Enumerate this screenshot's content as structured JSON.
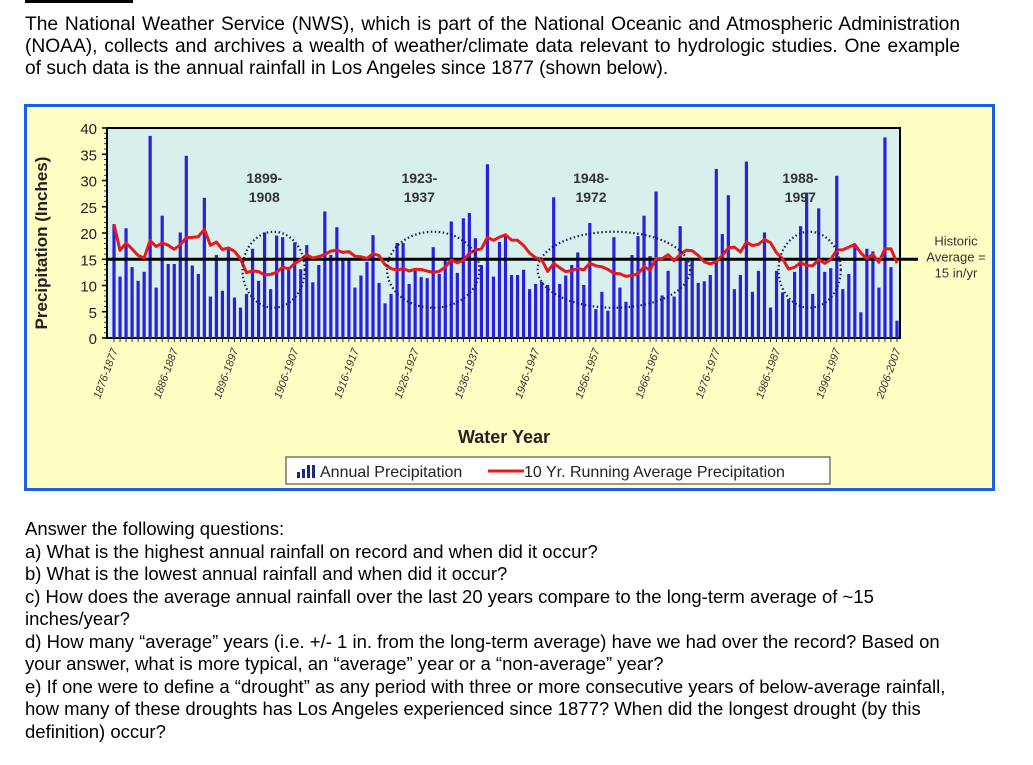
{
  "intro": {
    "text": "The National Weather Service (NWS), which is part of the National Oceanic and Atmospheric Administration (NOAA), collects and archives a wealth of weather/climate data relevant to hydrologic studies. One example of such data is the annual rainfall in Los Angeles since 1877 (shown below)."
  },
  "questions": {
    "heading": "Answer the following questions:",
    "items": [
      "a) What is the highest annual rainfall on record and when did it occur?",
      "b) What is the lowest annual rainfall and when did it occur?",
      "c) How does the average annual rainfall over the last 20 years compare to the long-term average of ~15 inches/year?",
      "d) How many “average” years (i.e. +/- 1 in. from the long-term average) have we had over the record? Based on your answer, what is more typical, an “average” year or a “non-average” year?",
      "e) If one were to define a “drought” as any period with three or more consecutive years of below-average rainfall, how many of these droughts has Los Angeles experienced since 1877?  When did the longest drought (by this definition) occur?"
    ]
  },
  "chart_data": {
    "type": "bar",
    "title": "",
    "xlabel": "Water Year",
    "ylabel": "Precipitation (Inches)",
    "ylim": [
      0,
      40
    ],
    "yticks": [
      0,
      5,
      10,
      15,
      20,
      25,
      30,
      35,
      40
    ],
    "x_tick_labels": [
      "1876-1877",
      "1886-1887",
      "1896-1897",
      "1906-1907",
      "1916-1917",
      "1926-1927",
      "1936-1937",
      "1946-1947",
      "1956-1957",
      "1966-1967",
      "1976-1977",
      "1986-1987",
      "1996-1997",
      "2006-2007"
    ],
    "first_year": 1877,
    "grid": false,
    "legend_position": "bottom",
    "colors": {
      "bars": "#2a1fe0",
      "running_average": "#e8181c",
      "historic_average": "#000000",
      "plot_background": "#d7f0ee",
      "frame_background": "#ffffc4",
      "frame_border": "#1a5fe6",
      "circle": "#1a1a4a"
    },
    "series": [
      {
        "name": "Annual Precipitation",
        "kind": "bar",
        "values": [
          21.7,
          11.7,
          20.9,
          13.5,
          10.9,
          12.6,
          38.5,
          9.6,
          23.3,
          14.1,
          14.1,
          20.1,
          34.7,
          13.8,
          12.2,
          26.7,
          7.9,
          15.8,
          9.0,
          17.3,
          7.7,
          5.8,
          8.4,
          17.0,
          10.9,
          20.1,
          9.3,
          19.5,
          19.2,
          13.5,
          18.2,
          13.1,
          17.7,
          10.6,
          13.9,
          24.1,
          15.8,
          21.1,
          15.0,
          15.0,
          9.6,
          11.9,
          14.5,
          19.6,
          10.5,
          6.6,
          8.4,
          18.1,
          18.1,
          10.3,
          12.8,
          11.6,
          11.4,
          17.3,
          12.2,
          15.0,
          22.2,
          12.4,
          22.8,
          23.8,
          19.0,
          13.9,
          33.1,
          11.7,
          18.3,
          19.4,
          12.0,
          12.0,
          13.0,
          9.3,
          10.3,
          10.7,
          10.1,
          26.8,
          10.3,
          11.9,
          13.9,
          16.3,
          10.1,
          21.9,
          5.5,
          8.8,
          5.2,
          19.2,
          9.6,
          6.9,
          15.8,
          19.4,
          23.3,
          15.6,
          27.9,
          8.1,
          12.8,
          7.9,
          21.3,
          15.0,
          15.0,
          10.5,
          10.8,
          12.0,
          32.2,
          19.8,
          27.2,
          9.3,
          12.0,
          33.6,
          8.8,
          12.8,
          20.1,
          5.8,
          12.8,
          8.7,
          7.4,
          12.6,
          21.3,
          27.7,
          8.4,
          24.7,
          12.6,
          13.3,
          30.9,
          9.3,
          12.2,
          17.9,
          4.9,
          17.0,
          16.5,
          9.6,
          38.2,
          13.5,
          3.3
        ]
      },
      {
        "name": "10 Yr. Running Average Precipitation",
        "kind": "line",
        "window_years": 10
      }
    ],
    "reference_line": {
      "value": 15,
      "label_lines": [
        "Historic",
        "Average =",
        "15 in/yr"
      ]
    },
    "annotations": [
      {
        "label_lines": [
          "1899-",
          "1908"
        ],
        "start_year": 1899,
        "end_year": 1908
      },
      {
        "label_lines": [
          "1923-",
          "1937"
        ],
        "start_year": 1923,
        "end_year": 1937
      },
      {
        "label_lines": [
          "1948-",
          "1972"
        ],
        "start_year": 1948,
        "end_year": 1972
      },
      {
        "label_lines": [
          "1988-",
          "1997"
        ],
        "start_year": 1988,
        "end_year": 1997
      }
    ],
    "legend": [
      "Annual Precipitation",
      "10 Yr. Running Average Precipitation"
    ]
  }
}
